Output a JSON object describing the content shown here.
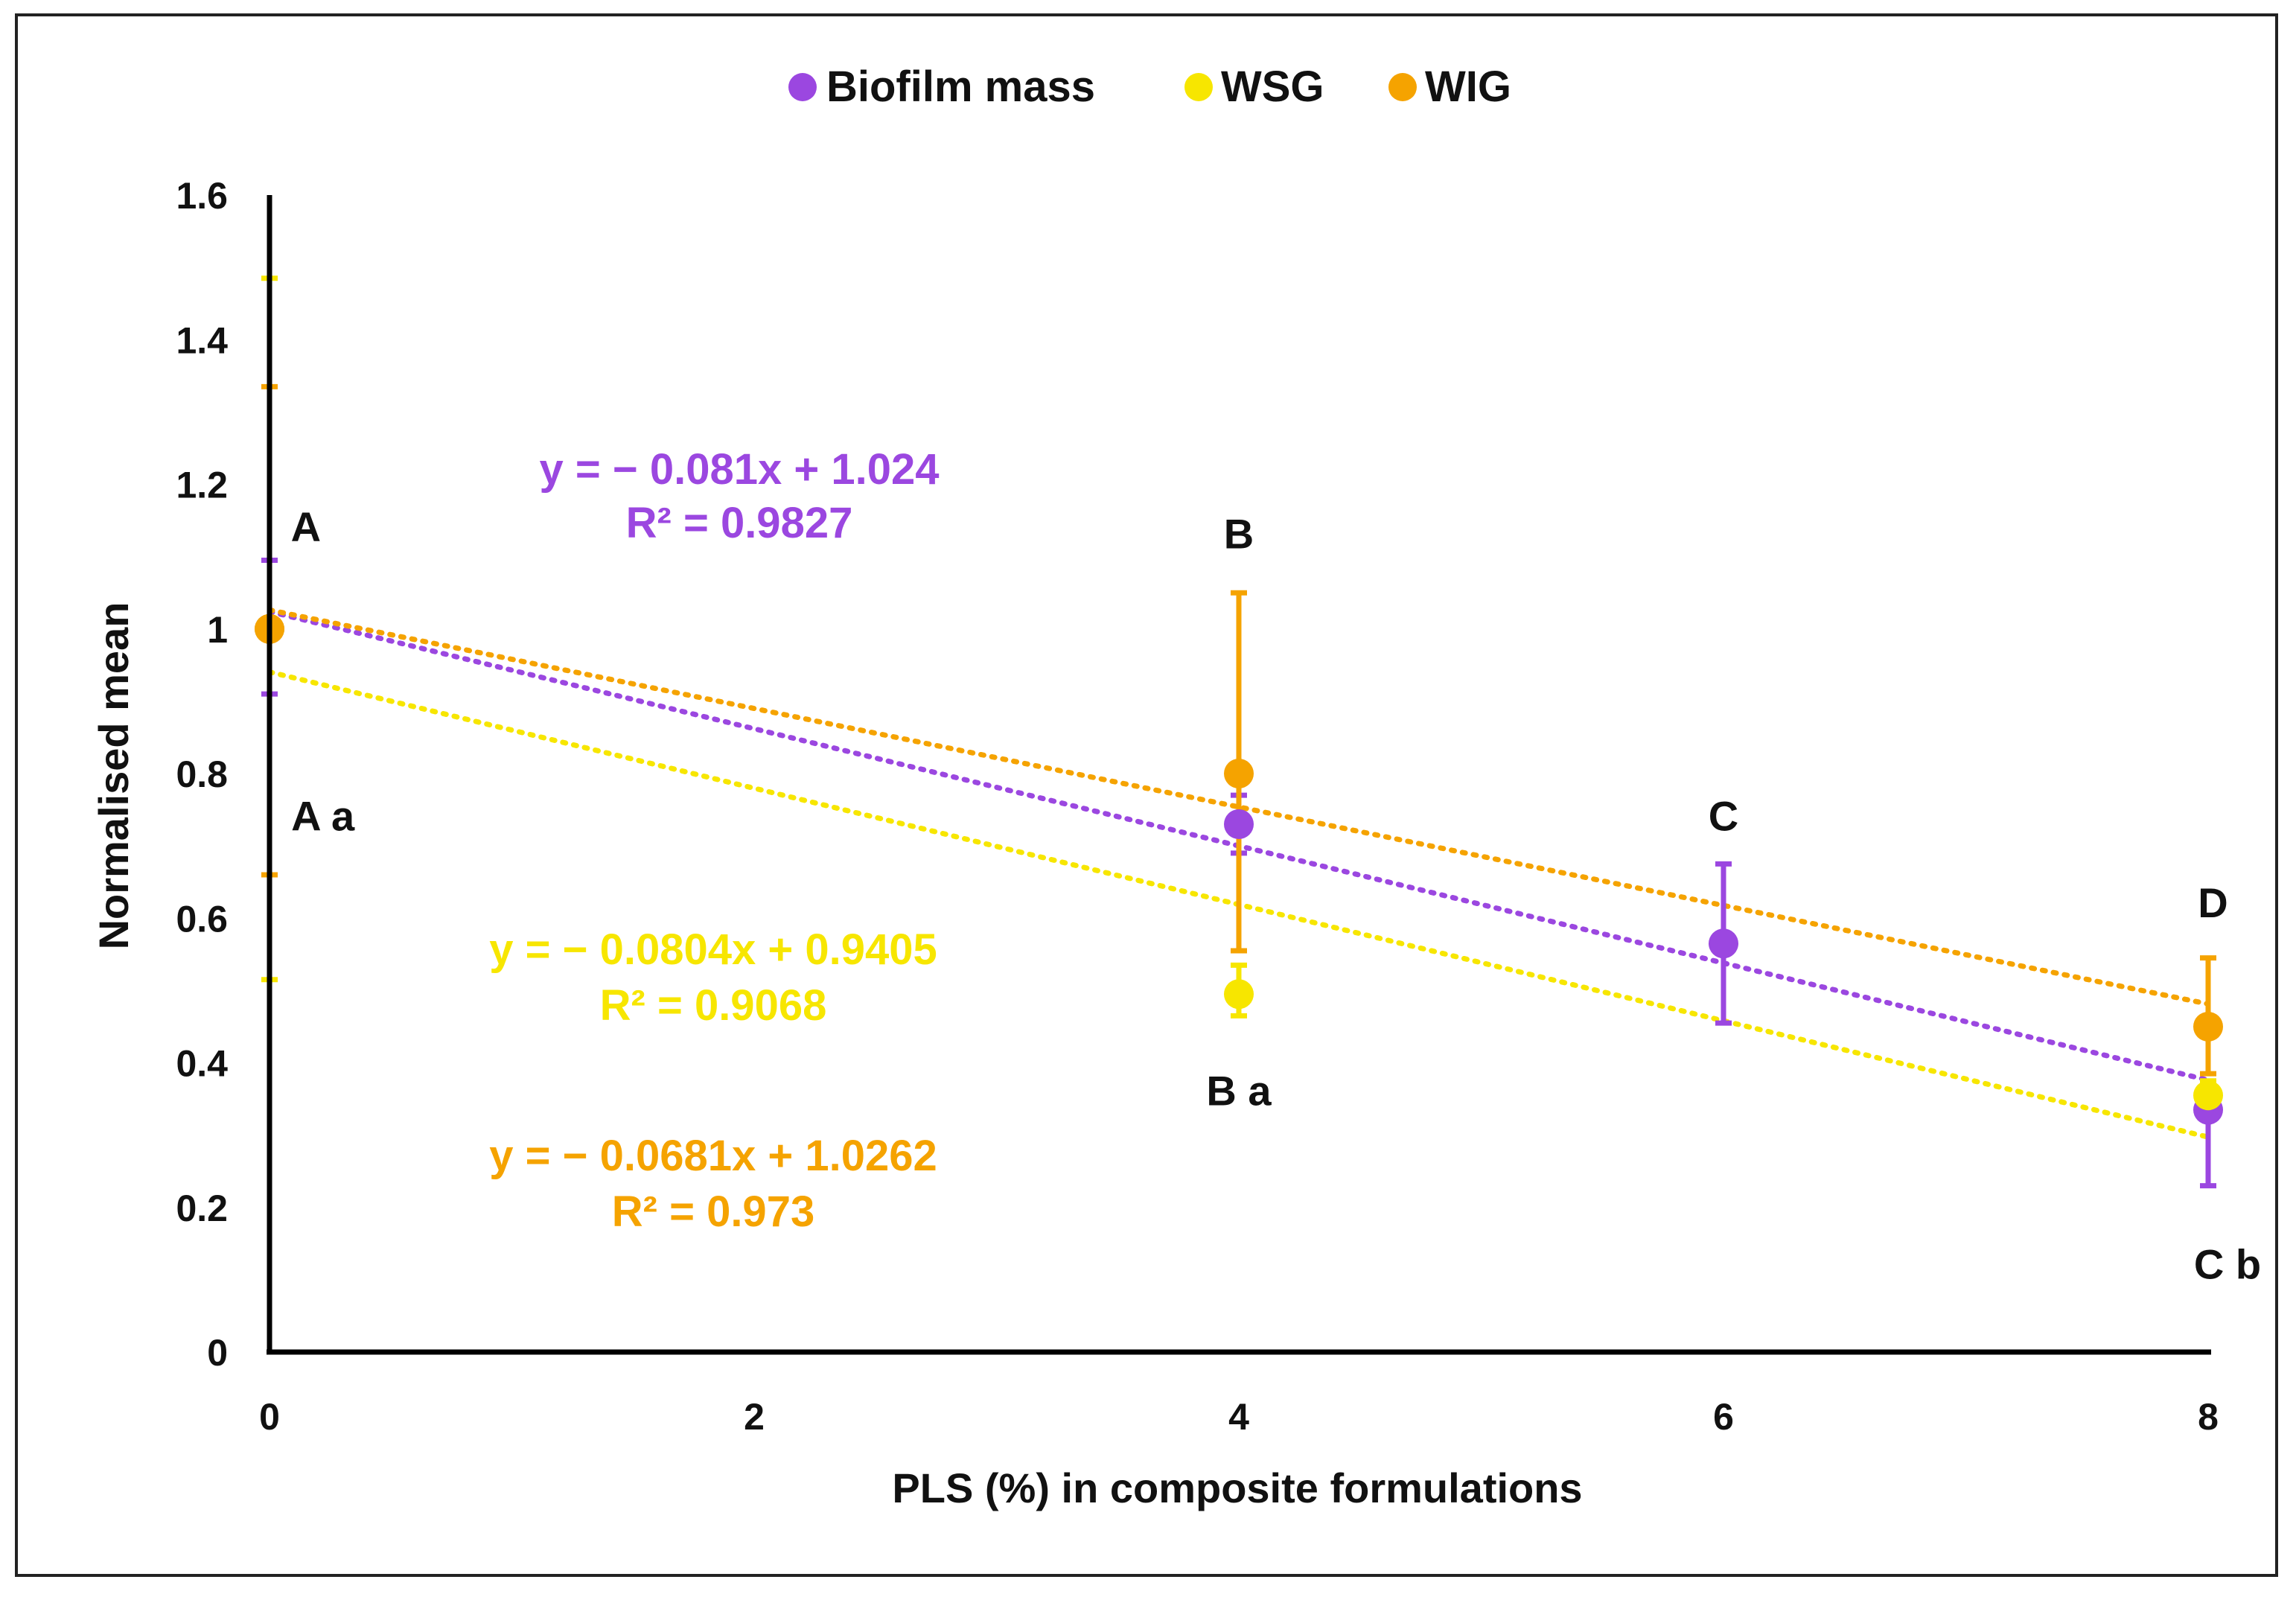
{
  "chart_data": {
    "type": "scatter",
    "title": "",
    "xlabel": "PLS (%) in composite formulations",
    "ylabel": "Normalised mean",
    "xlim": [
      0,
      8
    ],
    "ylim": [
      0,
      1.6
    ],
    "xticks": [
      "0",
      "2",
      "4",
      "6",
      "8"
    ],
    "yticks": [
      "0",
      "0.2",
      "0.4",
      "0.6",
      "0.8",
      "1",
      "1.2",
      "1.4",
      "1.6"
    ],
    "legend_position": "top",
    "series": [
      {
        "name": "Biofilm mass",
        "color": "#9b47e0",
        "x": [
          0,
          4,
          6,
          8
        ],
        "y": [
          1.0,
          0.73,
          0.565,
          0.335
        ],
        "err_low": [
          0.91,
          0.69,
          0.455,
          0.23
        ],
        "err_high": [
          1.095,
          0.77,
          0.675,
          0.35
        ],
        "trend": {
          "slope": -0.081,
          "intercept": 1.024
        },
        "equation": "y = − 0.081x + 1.024",
        "r2": "R² = 0.9827"
      },
      {
        "name": "WSG",
        "color": "#f7e600",
        "x": [
          0,
          4,
          8
        ],
        "y": [
          1.0,
          0.495,
          0.355
        ],
        "err_low": [
          0.515,
          0.465,
          0.335
        ],
        "err_high": [
          1.485,
          0.535,
          0.375
        ],
        "trend": {
          "slope": -0.0804,
          "intercept": 0.9405
        },
        "equation": "y = − 0.0804x + 0.9405",
        "r2": "R² = 0.9068"
      },
      {
        "name": "WIG",
        "color": "#f5a300",
        "x": [
          0,
          4,
          8
        ],
        "y": [
          1.0,
          0.8,
          0.45
        ],
        "err_low": [
          0.66,
          0.555,
          0.385
        ],
        "err_high": [
          1.335,
          1.05,
          0.545
        ],
        "trend": {
          "slope": -0.0681,
          "intercept": 1.0262
        },
        "equation": "y = − 0.0681x + 1.0262",
        "r2": "R² = 0.973"
      }
    ],
    "annotations": [
      {
        "text": "A",
        "x": 0.15,
        "y": 1.14
      },
      {
        "text": "A a",
        "x": 0.22,
        "y": 0.74
      },
      {
        "text": "B",
        "x": 4.0,
        "y": 1.13
      },
      {
        "text": "B a",
        "x": 4.0,
        "y": 0.36
      },
      {
        "text": "C",
        "x": 6.0,
        "y": 0.74
      },
      {
        "text": "D",
        "x": 8.02,
        "y": 0.62
      },
      {
        "text": "C b",
        "x": 8.08,
        "y": 0.12
      }
    ]
  }
}
